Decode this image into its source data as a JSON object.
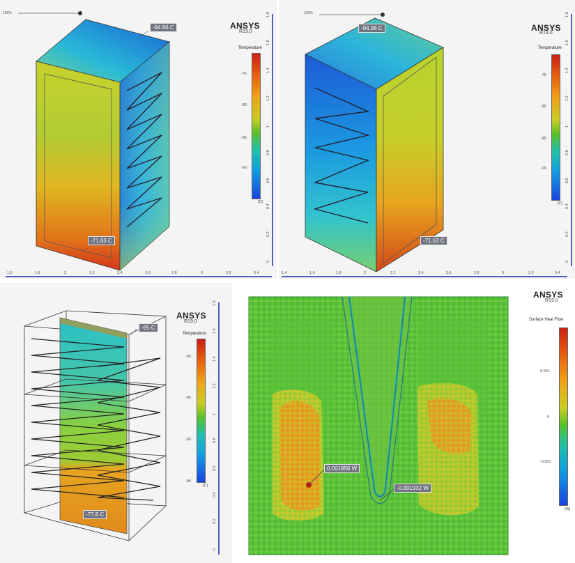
{
  "brand": {
    "name": "ANSYS",
    "version": "R19.0"
  },
  "panels": [
    {
      "zoom": "100%",
      "legend_title": "Temperature",
      "ticks": [
        "-75",
        "-80",
        "-85",
        "-90"
      ],
      "unit": "[C]",
      "callouts": [
        "-94.96 C",
        "-71.63 C"
      ],
      "ruler_right": [
        "1.8",
        "1.6",
        "1.4",
        "1.2",
        "1",
        "0.8",
        "0.6",
        "0.4",
        "0.2",
        "0"
      ],
      "ruler_bottom": [
        "1.6",
        "1.8",
        "2",
        "2.2",
        "2.4",
        "2.6",
        "2.8",
        "3",
        "3.2",
        "3.4"
      ]
    },
    {
      "zoom": "100%",
      "legend_title": "Temperature",
      "ticks": [
        "-75",
        "-80",
        "-85",
        "-90"
      ],
      "unit": "[C]",
      "callouts": [
        "-94.96 C",
        "-71.63 C"
      ],
      "ruler_right": [
        "1.8",
        "1.6",
        "1.4",
        "1.2",
        "1",
        "0.8",
        "0.6",
        "0.4",
        "0.2",
        "0"
      ],
      "ruler_bottom": [
        "1.4",
        "1.6",
        "1.8",
        "2",
        "2.2",
        "2.4",
        "2.6",
        "2.8",
        "3",
        "3.2",
        "3.4"
      ]
    },
    {
      "legend_title": "Temperature",
      "ticks": [
        "-83",
        "-85",
        "-93",
        "-95"
      ],
      "unit": "[C]",
      "callouts": [
        "-95 C",
        "-77.8 C"
      ],
      "ruler_right": [
        "1.8",
        "1.6",
        "1.4",
        "1.2",
        "1",
        "0.8",
        "0.6",
        "0.4",
        "0.2",
        "0"
      ]
    },
    {
      "legend_title": "Surface Heat Flow",
      "ticks": [
        "0.001",
        "0",
        "-0.001"
      ],
      "unit": "[W]",
      "callouts": [
        "0.001956 W",
        "-0.001932 W"
      ]
    }
  ]
}
